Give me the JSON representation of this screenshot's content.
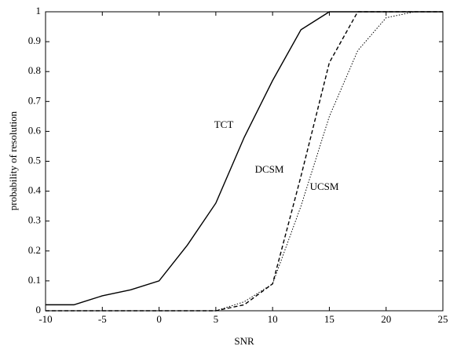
{
  "chart_data": {
    "type": "line",
    "x": [
      -10,
      -7.5,
      -5,
      -2.5,
      0,
      2.5,
      5,
      7.5,
      10,
      12.5,
      15,
      17.5,
      20,
      22.5,
      25
    ],
    "series": [
      {
        "name": "TCT",
        "color": "#000000",
        "dash": "solid",
        "values": [
          0.02,
          0.02,
          0.05,
          0.07,
          0.1,
          0.22,
          0.36,
          0.58,
          0.77,
          0.94,
          1,
          1,
          1,
          1,
          1
        ]
      },
      {
        "name": "DCSM",
        "color": "#000000",
        "dash": "dashed",
        "values": [
          0,
          0,
          0,
          0,
          0,
          0,
          0,
          0.02,
          0.09,
          0.45,
          0.83,
          1,
          1,
          1,
          1
        ]
      },
      {
        "name": "UCSM",
        "color": "#000000",
        "dash": "dotted",
        "values": [
          0,
          0,
          0,
          0,
          0,
          0,
          0,
          0.03,
          0.09,
          0.35,
          0.65,
          0.87,
          0.98,
          1,
          1
        ]
      }
    ],
    "x_label": "SNR",
    "y_label": "probability of resolution",
    "xlim": [
      -10,
      25
    ],
    "xticks": [
      -10,
      -5,
      0,
      5,
      10,
      15,
      20,
      25
    ],
    "ylim": [
      0,
      1
    ],
    "yticks": [
      0,
      0.1,
      0.2,
      0.3,
      0.4,
      0.5,
      0.6,
      0.7,
      0.8,
      0.9,
      1
    ],
    "grid": false
  }
}
